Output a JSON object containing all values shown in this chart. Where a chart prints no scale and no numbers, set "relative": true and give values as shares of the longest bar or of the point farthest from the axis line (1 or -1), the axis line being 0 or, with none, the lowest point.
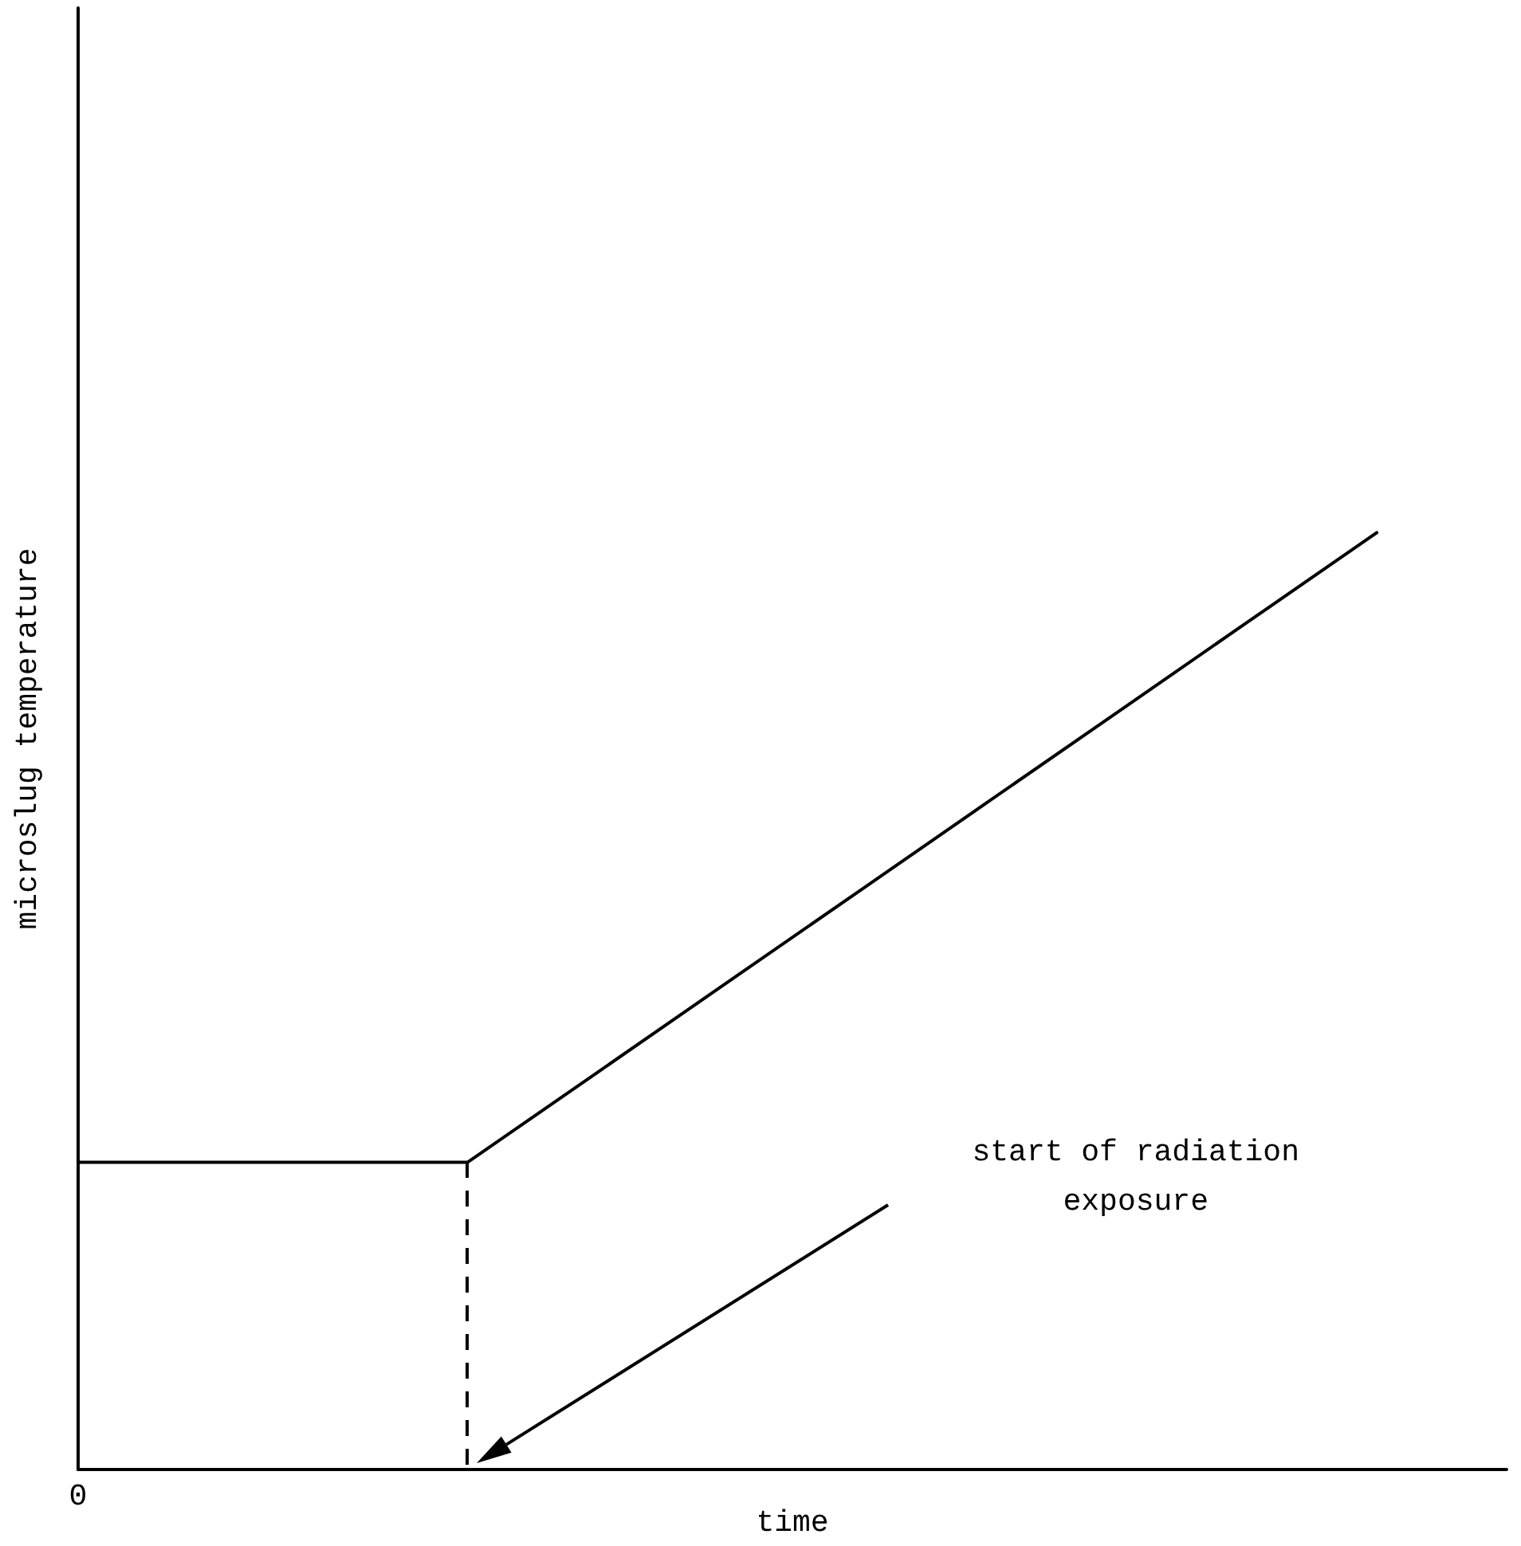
{
  "chart_data": {
    "type": "line",
    "relative": true,
    "xlabel": "time",
    "ylabel": "microslug temperature",
    "categories": [
      null,
      null,
      null,
      null,
      null,
      null,
      null,
      null,
      null,
      null,
      null
    ],
    "series": [
      {
        "color": "#000000",
        "values": [
          0.328,
          0.328,
          0.328,
          0.328,
          0.424,
          0.52,
          0.616,
          0.712,
          0.808,
          0.904,
          1
        ]
      }
    ],
    "grid": false,
    "marker": "none",
    "line_style": "solid",
    "annotations": [
      "0",
      "start of radiation exposure"
    ]
  }
}
